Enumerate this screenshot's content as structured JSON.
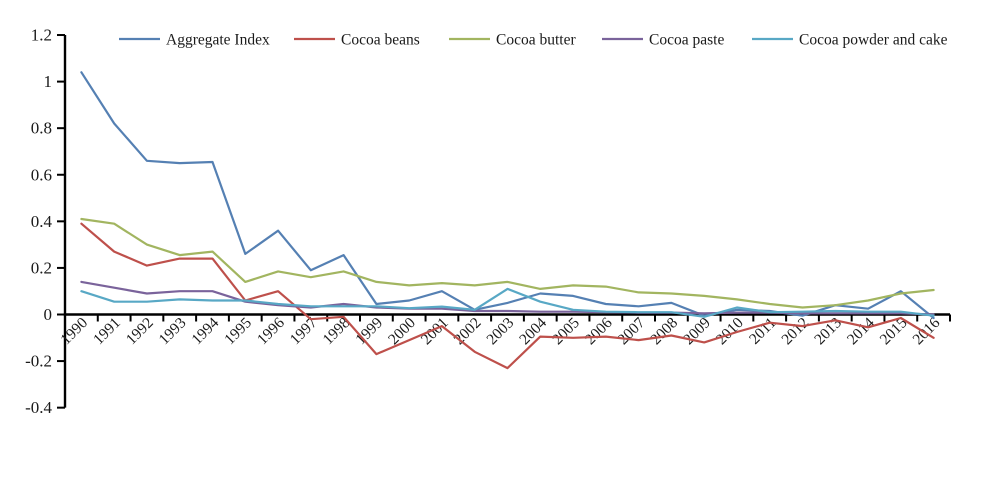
{
  "chart_data": {
    "type": "line",
    "title": "",
    "xlabel": "",
    "ylabel": "",
    "grid": false,
    "legend_position": "top",
    "background": "#FFFFFF",
    "axis_color": "#000000",
    "ylim": [
      -0.4,
      1.2
    ],
    "ytick_step": 0.2,
    "ytick_labels": [
      "1.2",
      "1",
      "0.8",
      "0.6",
      "0.4",
      "0.2",
      "0",
      "-0.2",
      "-0.4"
    ],
    "x": [
      1990,
      1991,
      1992,
      1993,
      1994,
      1995,
      1996,
      1997,
      1998,
      1999,
      2000,
      2001,
      2002,
      2003,
      2004,
      2005,
      2006,
      2007,
      2008,
      2009,
      2010,
      2011,
      2012,
      2013,
      2014,
      2015,
      2016
    ],
    "series": [
      {
        "name": "Aggregate Index",
        "color": "#5580B3",
        "values": [
          1.04,
          0.82,
          0.66,
          0.65,
          0.655,
          0.26,
          0.36,
          0.19,
          0.255,
          0.045,
          0.06,
          0.1,
          0.02,
          0.05,
          0.09,
          0.08,
          0.045,
          0.035,
          0.05,
          -0.005,
          0.02,
          0.015,
          -0.005,
          0.04,
          0.025,
          0.1,
          -0.015
        ]
      },
      {
        "name": "Cocoa beans",
        "color": "#BE504B",
        "values": [
          0.39,
          0.27,
          0.21,
          0.24,
          0.24,
          0.06,
          0.1,
          -0.02,
          -0.01,
          -0.17,
          -0.11,
          -0.05,
          -0.16,
          -0.23,
          -0.095,
          -0.1,
          -0.095,
          -0.11,
          -0.09,
          -0.12,
          -0.075,
          -0.035,
          -0.05,
          -0.025,
          -0.055,
          -0.015,
          -0.1
        ]
      },
      {
        "name": "Cocoa butter",
        "color": "#A2B560",
        "values": [
          0.41,
          0.39,
          0.3,
          0.255,
          0.27,
          0.14,
          0.185,
          0.16,
          0.185,
          0.14,
          0.125,
          0.135,
          0.125,
          0.14,
          0.11,
          0.125,
          0.12,
          0.095,
          0.09,
          0.08,
          0.065,
          0.045,
          0.03,
          0.04,
          0.06,
          0.09,
          0.105
        ]
      },
      {
        "name": "Cocoa paste",
        "color": "#7A639B",
        "values": [
          0.14,
          0.115,
          0.09,
          0.1,
          0.1,
          0.055,
          0.04,
          0.03,
          0.045,
          0.03,
          0.025,
          0.025,
          0.015,
          0.015,
          0.012,
          0.012,
          0.01,
          0.008,
          0.008,
          0.005,
          0.008,
          0.008,
          0.005,
          0.005,
          0.005,
          0.005,
          0.0
        ]
      },
      {
        "name": "Cocoa powder and cake",
        "color": "#58A8C5",
        "values": [
          0.1,
          0.055,
          0.055,
          0.065,
          0.06,
          0.06,
          0.045,
          0.035,
          0.035,
          0.035,
          0.027,
          0.034,
          0.02,
          0.11,
          0.055,
          0.02,
          0.012,
          0.01,
          0.01,
          -0.01,
          0.03,
          0.01,
          0.012,
          0.015,
          0.012,
          0.012,
          -0.005
        ]
      }
    ]
  }
}
